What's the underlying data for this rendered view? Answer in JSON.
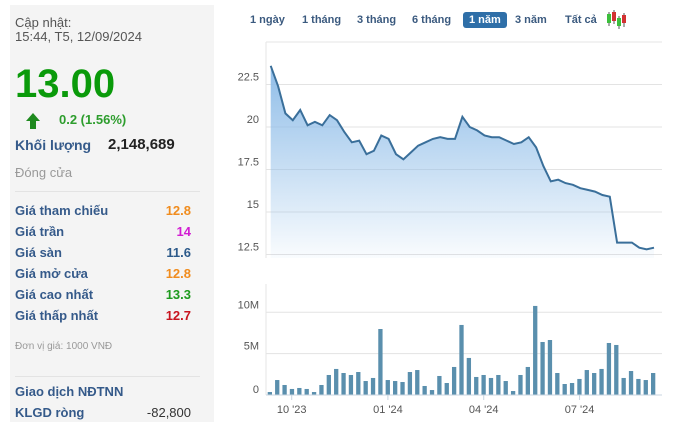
{
  "summary": {
    "updated_label": "Cập nhật:",
    "updated_time": "15:44, T5, 12/09/2024",
    "price": "13.00",
    "change": "0.2 (1.56%)",
    "volume_label": "Khối lượng",
    "volume_value": "2,148,689",
    "status": "Đóng cửa",
    "rows": [
      {
        "label": "Giá tham chiếu",
        "value": "12.8",
        "color": "#f08c1e"
      },
      {
        "label": "Giá trần",
        "value": "14",
        "color": "#d21ed2"
      },
      {
        "label": "Giá sàn",
        "value": "11.6",
        "color": "#2d5a8a"
      },
      {
        "label": "Giá mở cửa",
        "value": "12.8",
        "color": "#f08c1e"
      },
      {
        "label": "Giá cao nhất",
        "value": "13.3",
        "color": "#1e9a1e"
      },
      {
        "label": "Giá thấp nhất",
        "value": "12.7",
        "color": "#c8141e"
      }
    ],
    "unit": "Đơn vị giá: 1000 VNĐ",
    "foreign_label": "Giao dịch NĐTNN",
    "net_label": "KLGD ròng",
    "net_value": "-82,800"
  },
  "tabs": [
    {
      "label": "1 ngày",
      "active": false
    },
    {
      "label": "1 tháng",
      "active": false
    },
    {
      "label": "3 tháng",
      "active": false
    },
    {
      "label": "6 tháng",
      "active": false
    },
    {
      "label": "1 năm",
      "active": true
    },
    {
      "label": "3 năm",
      "active": false
    },
    {
      "label": "Tất cả",
      "active": false
    }
  ],
  "candlestick_icon": "candlestick-chart-icon",
  "colors": {
    "up": "#0a9a0a",
    "line": "#3a6f9a",
    "area": "#8fbde8",
    "bar": "#5a8fad",
    "active_tab": "#2f6fa8"
  },
  "chart_data": [
    {
      "type": "area",
      "ylim": [
        12.5,
        25
      ],
      "y_ticks": [
        "12.5",
        "15",
        "17.5",
        "20",
        "22.5"
      ],
      "grid": true,
      "values": [
        23.6,
        22.4,
        20.8,
        20.4,
        21.0,
        20.1,
        20.3,
        20.1,
        20.7,
        20.4,
        19.7,
        19.1,
        19.2,
        18.4,
        18.6,
        19.5,
        19.3,
        18.4,
        18.1,
        18.5,
        18.9,
        19.1,
        19.3,
        19.4,
        19.3,
        19.3,
        20.6,
        20.0,
        19.8,
        19.5,
        19.4,
        19.4,
        19.2,
        19.0,
        19.1,
        19.4,
        18.8,
        17.7,
        16.8,
        16.9,
        16.7,
        16.6,
        16.4,
        16.3,
        16.2,
        16.0,
        15.9,
        13.2,
        13.2,
        13.2,
        12.9,
        12.8,
        12.9
      ]
    },
    {
      "type": "bar",
      "ylim": [
        0,
        13
      ],
      "y_ticks": [
        {
          "label": "0",
          "value": 0
        },
        {
          "label": "5M",
          "value": 5
        },
        {
          "label": "10M",
          "value": 10
        }
      ],
      "unit": "M",
      "grid": true,
      "values": [
        0.36,
        1.81,
        1.21,
        0.73,
        0.85,
        0.73,
        0.36,
        1.21,
        2.42,
        3.15,
        2.66,
        2.42,
        2.78,
        1.69,
        2.06,
        7.98,
        1.81,
        1.69,
        1.57,
        2.78,
        3.02,
        1.09,
        0.6,
        2.3,
        1.45,
        3.39,
        8.47,
        4.48,
        2.18,
        2.42,
        2.06,
        2.42,
        1.69,
        0.48,
        2.42,
        3.39,
        10.77,
        6.41,
        6.65,
        2.66,
        1.33,
        1.45,
        1.94,
        3.02,
        2.66,
        3.15,
        6.29,
        6.05,
        2.06,
        2.9,
        1.94,
        1.81,
        2.66
      ],
      "x_ticks": [
        {
          "label": "10 '23",
          "index": 2.85
        },
        {
          "label": "01 '24",
          "index": 15.9
        },
        {
          "label": "04 '24",
          "index": 28.9
        },
        {
          "label": "07 '24",
          "index": 41.9
        }
      ]
    }
  ]
}
